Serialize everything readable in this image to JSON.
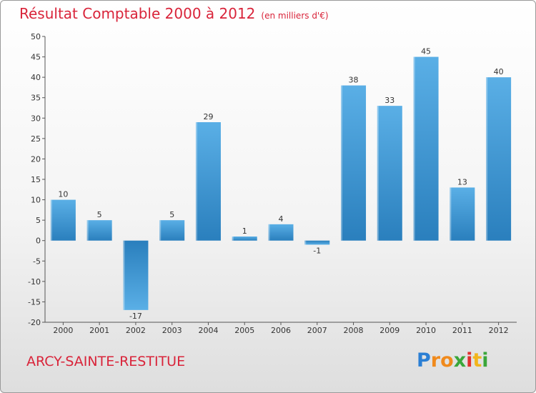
{
  "title": "Résultat Comptable 2000 à 2012",
  "subtitle": "(en milliers d'€)",
  "commune": "ARCY-SAINTE-RESTITUE",
  "logo": {
    "letters": [
      "P",
      "r",
      "o",
      "x",
      "i",
      "t",
      "i"
    ],
    "colors": [
      "#2b7fd4",
      "#f08a1c",
      "#f08a1c",
      "#3aa63a",
      "#e0302e",
      "#f2b51d",
      "#3aa63a"
    ]
  },
  "colors": {
    "title": "#d9243a",
    "bar_light": "#5aafe6",
    "bar_dark": "#2a7fbd"
  },
  "chart_data": {
    "type": "bar",
    "title": "Résultat Comptable 2000 à 2012",
    "subtitle": "(en milliers d'€)",
    "xlabel": "",
    "ylabel": "",
    "categories": [
      "2000",
      "2001",
      "2002",
      "2003",
      "2004",
      "2005",
      "2006",
      "2007",
      "2008",
      "2009",
      "2010",
      "2011",
      "2012"
    ],
    "values": [
      10,
      5,
      -17,
      5,
      29,
      1,
      4,
      -1,
      38,
      33,
      45,
      13,
      40
    ],
    "value_labels": [
      "10",
      "5",
      "-17",
      "5",
      "29",
      "1",
      "4",
      "-1",
      "38",
      "33",
      "45",
      "13",
      "40"
    ],
    "ylim": [
      -20,
      50
    ],
    "yticks": [
      -20,
      -15,
      -10,
      -5,
      0,
      5,
      10,
      15,
      20,
      25,
      30,
      35,
      40,
      45,
      50
    ],
    "grid": false,
    "legend": "none"
  }
}
